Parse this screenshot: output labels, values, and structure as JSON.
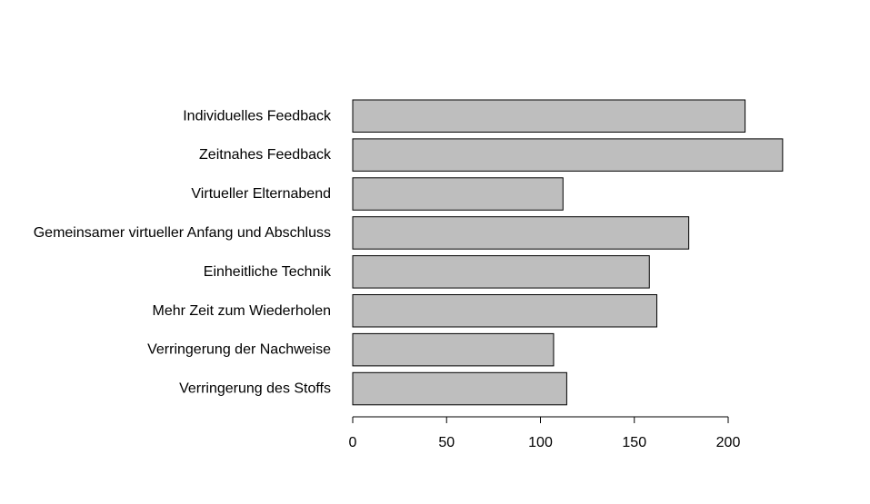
{
  "chart_data": {
    "type": "bar",
    "orientation": "horizontal",
    "title": "",
    "xlabel": "",
    "ylabel": "",
    "categories": [
      "Individuelles Feedback",
      "Zeitnahes Feedback",
      "Virtueller Elternabend",
      "Gemeinsamer virtueller Anfang und Abschluss",
      "Einheitliche Technik",
      "Mehr Zeit zum Wiederholen",
      "Verringerung der Nachweise",
      "Verringerung des Stoffs"
    ],
    "values": [
      209,
      229,
      112,
      179,
      158,
      162,
      107,
      114
    ],
    "xlim": [
      0,
      229
    ],
    "xticks": [
      "0",
      "50",
      "100",
      "150",
      "200"
    ],
    "grid": false,
    "bar_color": "#bebebe",
    "edge_color": "#000000"
  }
}
